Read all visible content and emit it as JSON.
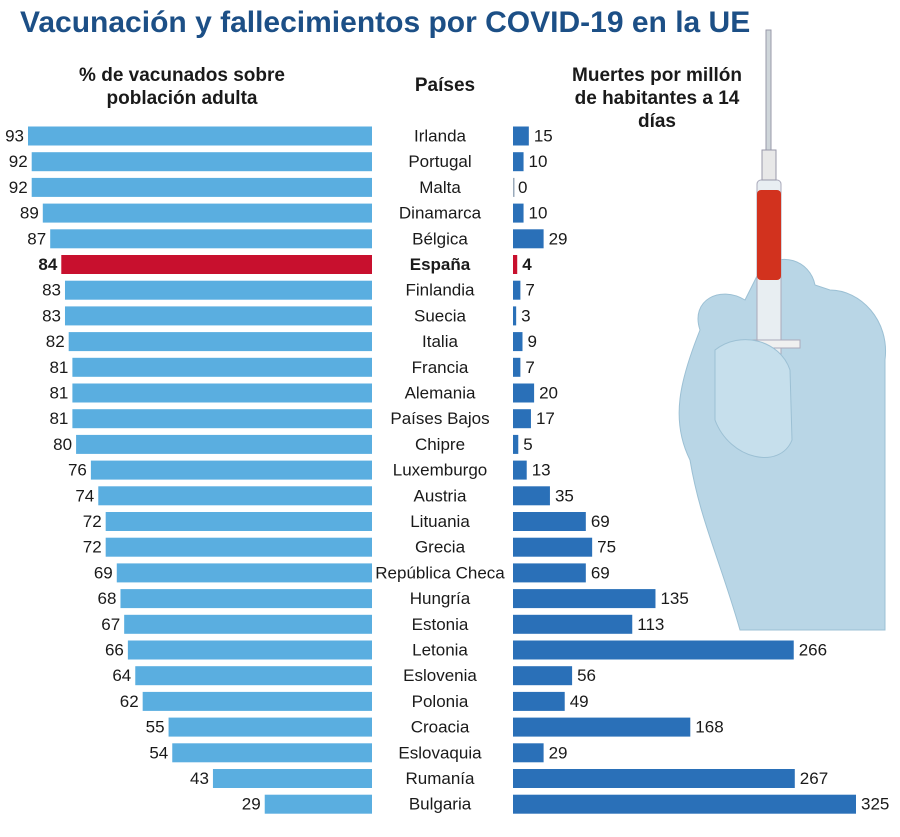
{
  "chart_data": {
    "type": "butterfly-bar",
    "title": "Vacunación y fallecimientos por COVID-19 en la UE",
    "categories_header": "Países",
    "categories": [
      "Irlanda",
      "Portugal",
      "Malta",
      "Dinamarca",
      "Bélgica",
      "España",
      "Finlandia",
      "Suecia",
      "Italia",
      "Francia",
      "Alemania",
      "Países Bajos",
      "Chipre",
      "Luxemburgo",
      "Austria",
      "Lituania",
      "Grecia",
      "República Checa",
      "Hungría",
      "Estonia",
      "Letonia",
      "Eslovenia",
      "Polonia",
      "Croacia",
      "Eslovaquia",
      "Rumanía",
      "Bulgaria"
    ],
    "series": [
      {
        "name": "% de vacunados sobre población adulta",
        "color": "#5aaee0",
        "side": "left",
        "values": [
          93,
          92,
          92,
          89,
          87,
          84,
          83,
          83,
          82,
          81,
          81,
          81,
          80,
          76,
          74,
          72,
          72,
          69,
          68,
          67,
          66,
          64,
          62,
          55,
          54,
          43,
          29
        ]
      },
      {
        "name": "Muertes por millón de habitantes a 14 días",
        "color": "#2a70b8",
        "side": "right",
        "values": [
          15,
          10,
          0,
          10,
          29,
          4,
          7,
          3,
          9,
          7,
          20,
          17,
          5,
          13,
          35,
          69,
          75,
          69,
          135,
          113,
          266,
          56,
          49,
          168,
          29,
          267,
          325
        ]
      }
    ],
    "highlight": {
      "category": "España",
      "color": "#c8102e"
    }
  }
}
